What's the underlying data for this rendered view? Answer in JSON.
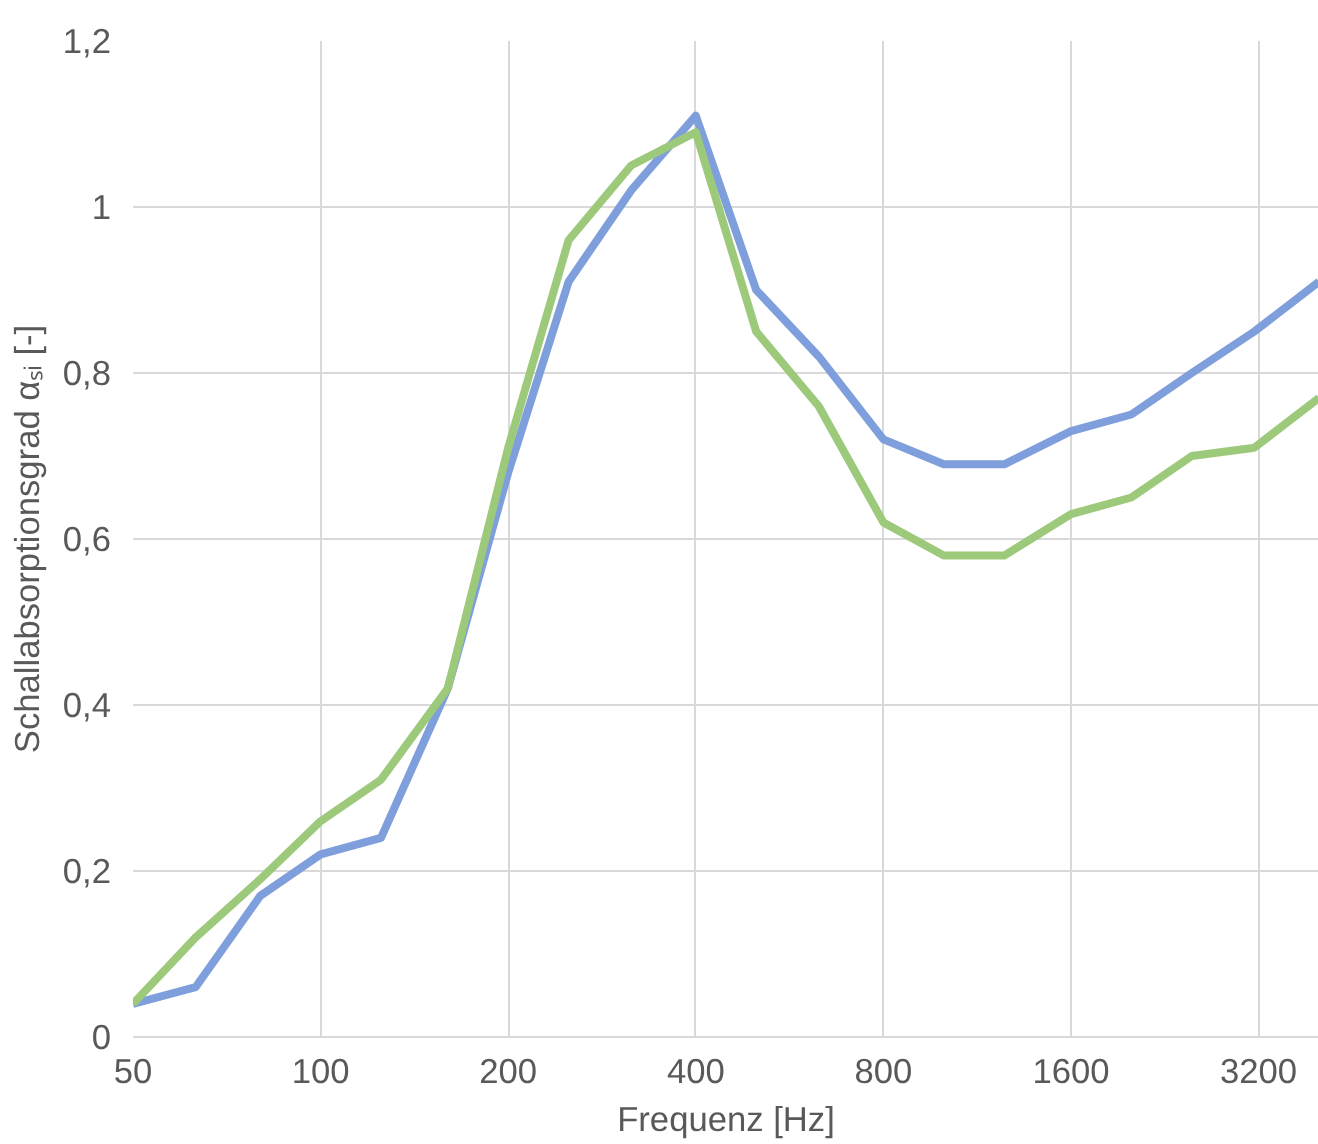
{
  "chart_data": {
    "type": "line",
    "xlabel": "Frequenz [Hz]",
    "ylabel": "Schallabsorptionsgrad αₛᵢ [-]",
    "x": [
      50,
      63,
      80,
      100,
      125,
      160,
      200,
      250,
      315,
      400,
      500,
      630,
      800,
      1000,
      1250,
      1600,
      2000,
      2500,
      3150,
      4000
    ],
    "series": [
      {
        "color": "#7f9fdc",
        "values": [
          0.04,
          0.06,
          0.17,
          0.22,
          0.24,
          0.42,
          0.68,
          0.91,
          1.02,
          1.11,
          0.9,
          0.82,
          0.72,
          0.69,
          0.69,
          0.73,
          0.75,
          0.8,
          0.85,
          0.91
        ]
      },
      {
        "color": "#9dc97b",
        "values": [
          0.04,
          0.12,
          0.19,
          0.26,
          0.31,
          0.42,
          0.71,
          0.96,
          1.05,
          1.09,
          0.85,
          0.76,
          0.62,
          0.58,
          0.58,
          0.63,
          0.65,
          0.7,
          0.71,
          0.77
        ]
      }
    ],
    "log": "x",
    "xlim": [
      50,
      4000
    ],
    "xticks": [
      50,
      100,
      200,
      400,
      800,
      1600,
      3200
    ],
    "ylim": [
      0,
      1.2
    ],
    "yticks": [
      {
        "value": 0,
        "label": "0"
      },
      {
        "value": 0.2,
        "label": "0,2"
      },
      {
        "value": 0.4,
        "label": "0,4"
      },
      {
        "value": 0.6,
        "label": "0,6"
      },
      {
        "value": 0.8,
        "label": "0,8"
      },
      {
        "value": 1,
        "label": "1"
      },
      {
        "value": 1.2,
        "label": "1,2"
      }
    ],
    "grid": true
  }
}
